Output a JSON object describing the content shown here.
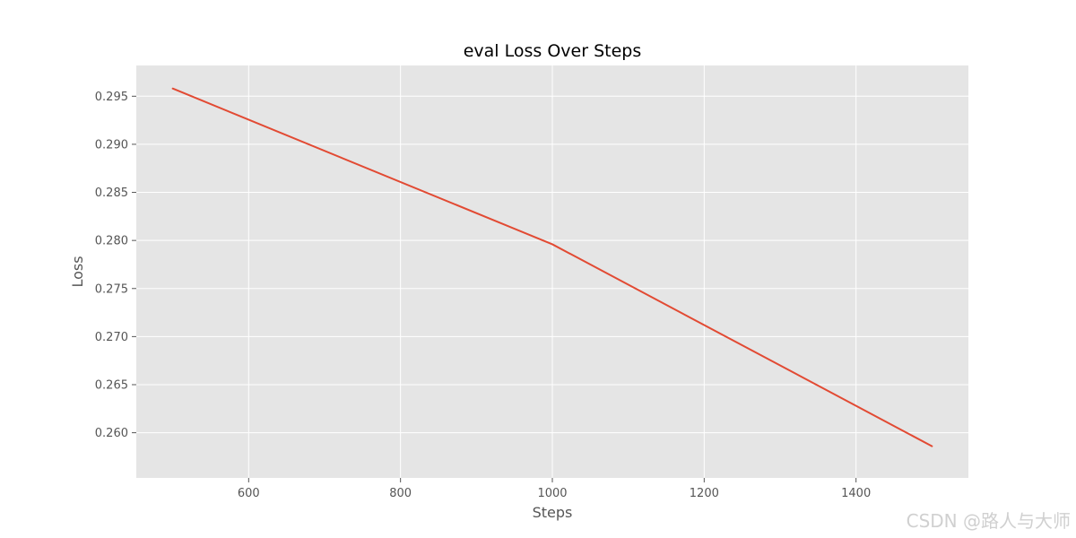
{
  "chart_data": {
    "type": "line",
    "title": "eval Loss Over Steps",
    "xlabel": "Steps",
    "ylabel": "Loss",
    "xlim": [
      452,
      1548
    ],
    "ylim": [
      0.2553,
      0.2982
    ],
    "xticks": [
      600,
      800,
      1000,
      1200,
      1400
    ],
    "yticks": [
      0.26,
      0.265,
      0.27,
      0.275,
      0.28,
      0.285,
      0.29,
      0.295
    ],
    "grid": true,
    "series": [
      {
        "color": "#e24a33",
        "x": [
          500,
          1000,
          1500
        ],
        "y": [
          0.2958,
          0.2796,
          0.2586
        ]
      }
    ]
  },
  "colors": {
    "plot_background": "#e5e5e5",
    "grid": "#ffffff",
    "line": "#e24a33"
  },
  "watermark": "CSDN @路人与大师"
}
